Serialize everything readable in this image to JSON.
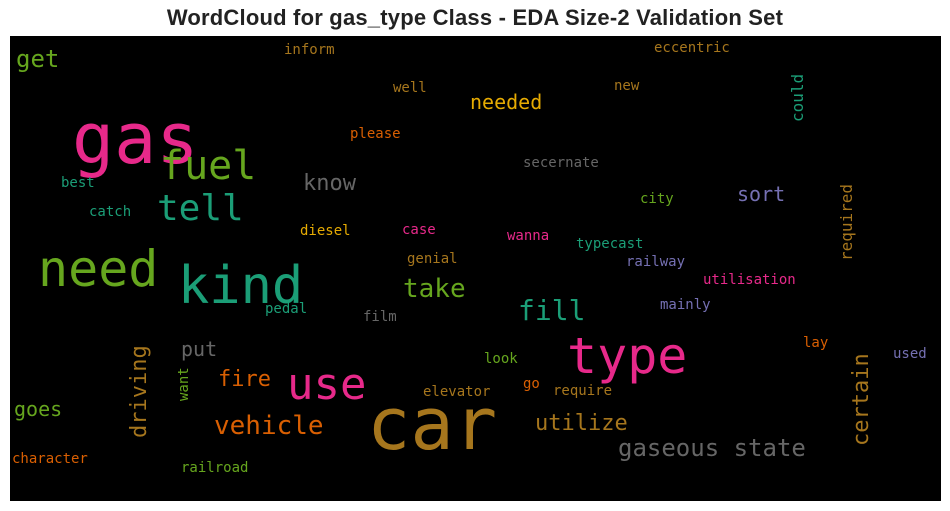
{
  "chart_data": {
    "type": "wordcloud",
    "title": "WordCloud for gas_type Class - EDA Size-2 Validation Set",
    "background": "#000000",
    "words": [
      {
        "text": "car",
        "weight": 1.0,
        "color": "#a6761d"
      },
      {
        "text": "gas",
        "weight": 0.98,
        "color": "#e7298a"
      },
      {
        "text": "kind",
        "weight": 0.73,
        "color": "#1b9e77"
      },
      {
        "text": "type",
        "weight": 0.72,
        "color": "#e7298a"
      },
      {
        "text": "need",
        "weight": 0.7,
        "color": "#66a61e"
      },
      {
        "text": "use",
        "weight": 0.62,
        "color": "#e7298a"
      },
      {
        "text": "fuel",
        "weight": 0.57,
        "color": "#66a61e"
      },
      {
        "text": "tell",
        "weight": 0.52,
        "color": "#1b9e77"
      },
      {
        "text": "fill",
        "weight": 0.4,
        "color": "#1b9e77"
      },
      {
        "text": "vehicle",
        "weight": 0.38,
        "color": "#d95f02"
      },
      {
        "text": "take",
        "weight": 0.38,
        "color": "#66a61e"
      },
      {
        "text": "gaseous state",
        "weight": 0.36,
        "color": "#666666"
      },
      {
        "text": "get",
        "weight": 0.35,
        "color": "#66a61e"
      },
      {
        "text": "know",
        "weight": 0.33,
        "color": "#666666"
      },
      {
        "text": "fire",
        "weight": 0.33,
        "color": "#d95f02"
      },
      {
        "text": "utilize",
        "weight": 0.33,
        "color": "#a6761d"
      },
      {
        "text": "driving",
        "weight": 0.33,
        "color": "#a6761d"
      },
      {
        "text": "certain",
        "weight": 0.33,
        "color": "#a6761d"
      },
      {
        "text": "needed",
        "weight": 0.31,
        "color": "#e6ab02"
      },
      {
        "text": "put",
        "weight": 0.31,
        "color": "#666666"
      },
      {
        "text": "goes",
        "weight": 0.31,
        "color": "#66a61e"
      },
      {
        "text": "sort",
        "weight": 0.31,
        "color": "#7570b3"
      },
      {
        "text": "could",
        "weight": 0.25,
        "color": "#1b9e77"
      },
      {
        "text": "required",
        "weight": 0.25,
        "color": "#a6761d"
      },
      {
        "text": "inform",
        "weight": 0.25,
        "color": "#a6761d"
      },
      {
        "text": "eccentric",
        "weight": 0.25,
        "color": "#a6761d"
      },
      {
        "text": "well",
        "weight": 0.25,
        "color": "#a6761d"
      },
      {
        "text": "new",
        "weight": 0.25,
        "color": "#a6761d"
      },
      {
        "text": "please",
        "weight": 0.25,
        "color": "#d95f02"
      },
      {
        "text": "secernate",
        "weight": 0.25,
        "color": "#666666"
      },
      {
        "text": "best",
        "weight": 0.25,
        "color": "#1b9e77"
      },
      {
        "text": "city",
        "weight": 0.25,
        "color": "#66a61e"
      },
      {
        "text": "catch",
        "weight": 0.25,
        "color": "#1b9e77"
      },
      {
        "text": "diesel",
        "weight": 0.25,
        "color": "#e6ab02"
      },
      {
        "text": "case",
        "weight": 0.25,
        "color": "#e7298a"
      },
      {
        "text": "wanna",
        "weight": 0.25,
        "color": "#e7298a"
      },
      {
        "text": "typecast",
        "weight": 0.25,
        "color": "#1b9e77"
      },
      {
        "text": "railway",
        "weight": 0.25,
        "color": "#7570b3"
      },
      {
        "text": "genial",
        "weight": 0.25,
        "color": "#a6761d"
      },
      {
        "text": "utilisation",
        "weight": 0.25,
        "color": "#e7298a"
      },
      {
        "text": "pedal",
        "weight": 0.25,
        "color": "#1b9e77"
      },
      {
        "text": "film",
        "weight": 0.25,
        "color": "#666666"
      },
      {
        "text": "mainly",
        "weight": 0.25,
        "color": "#7570b3"
      },
      {
        "text": "lay",
        "weight": 0.25,
        "color": "#d95f02"
      },
      {
        "text": "used",
        "weight": 0.25,
        "color": "#7570b3"
      },
      {
        "text": "look",
        "weight": 0.25,
        "color": "#66a61e"
      },
      {
        "text": "want",
        "weight": 0.25,
        "color": "#66a61e"
      },
      {
        "text": "elevator",
        "weight": 0.25,
        "color": "#a6761d"
      },
      {
        "text": "go",
        "weight": 0.25,
        "color": "#d95f02"
      },
      {
        "text": "require",
        "weight": 0.25,
        "color": "#a6761d"
      },
      {
        "text": "character",
        "weight": 0.25,
        "color": "#d95f02"
      },
      {
        "text": "railroad",
        "weight": 0.25,
        "color": "#66a61e"
      }
    ]
  }
}
